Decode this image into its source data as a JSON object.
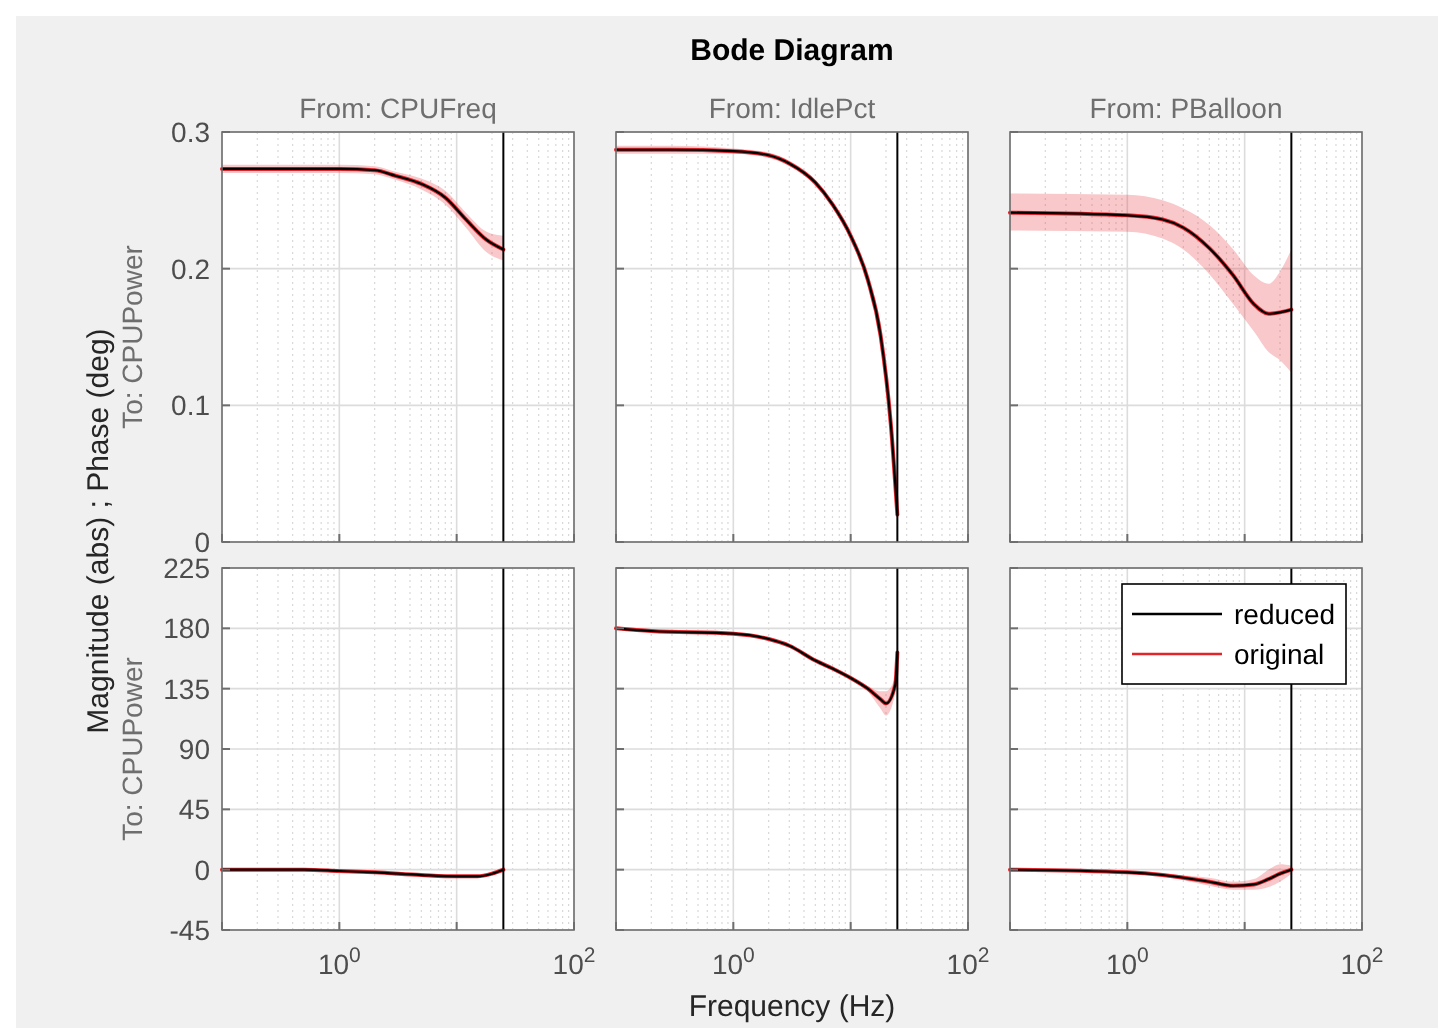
{
  "chart_data": [
    {
      "type": "line",
      "title": "From: CPUFreq",
      "ylabel": "To: CPUPower",
      "log": "x",
      "xlim": [
        0.1,
        100
      ],
      "xticks": [
        {
          "value": 0.1,
          "label": null
        },
        {
          "value": 1,
          "label": null
        },
        {
          "value": 10,
          "label": null
        },
        {
          "value": 100,
          "label": null
        }
      ],
      "ylim": [
        0,
        0.3
      ],
      "yticks": [
        0,
        0.1,
        0.2,
        0.3
      ],
      "grid": true,
      "tick_labels": "y",
      "ref_lines": [
        {
          "axis": "x",
          "value": 25,
          "color": "#000000"
        }
      ],
      "x": [
        0.1,
        0.3,
        1,
        2,
        3,
        5,
        8,
        12,
        18,
        25
      ],
      "series": [
        {
          "color": "#000000",
          "values": [
            0.273,
            0.273,
            0.273,
            0.272,
            0.268,
            0.262,
            0.252,
            0.236,
            0.221,
            0.214
          ]
        },
        {
          "color": "#e3242b",
          "values": [
            0.273,
            0.273,
            0.273,
            0.272,
            0.268,
            0.262,
            0.252,
            0.236,
            0.221,
            0.214
          ],
          "lower": [
            0.27,
            0.27,
            0.27,
            0.269,
            0.265,
            0.258,
            0.247,
            0.23,
            0.212,
            0.206
          ],
          "upper": [
            0.276,
            0.276,
            0.276,
            0.275,
            0.271,
            0.266,
            0.257,
            0.241,
            0.227,
            0.224
          ]
        }
      ]
    },
    {
      "type": "line",
      "title": "From: IdlePct",
      "log": "x",
      "xlim": [
        0.1,
        100
      ],
      "xticks": [
        {
          "value": 0.1,
          "label": null
        },
        {
          "value": 1,
          "label": null
        },
        {
          "value": 10,
          "label": null
        },
        {
          "value": 100,
          "label": null
        }
      ],
      "ylim": [
        0,
        0.3
      ],
      "yticks": [
        0,
        0.1,
        0.2,
        0.3
      ],
      "grid": true,
      "tick_labels": false,
      "ref_lines": [
        {
          "axis": "x",
          "value": 25,
          "color": "#000000"
        }
      ],
      "x": [
        0.1,
        0.3,
        1,
        2,
        3,
        5,
        7,
        10,
        14,
        18,
        22,
        25
      ],
      "series": [
        {
          "color": "#000000",
          "values": [
            0.287,
            0.287,
            0.286,
            0.283,
            0.277,
            0.263,
            0.247,
            0.224,
            0.192,
            0.151,
            0.086,
            0.02
          ]
        },
        {
          "color": "#e3242b",
          "values": [
            0.287,
            0.287,
            0.286,
            0.283,
            0.277,
            0.263,
            0.247,
            0.224,
            0.192,
            0.151,
            0.086,
            0.02
          ],
          "lower": [
            0.284,
            0.284,
            0.284,
            0.281,
            0.275,
            0.261,
            0.245,
            0.222,
            0.19,
            0.149,
            0.084,
            0.018
          ],
          "upper": [
            0.29,
            0.29,
            0.288,
            0.285,
            0.279,
            0.265,
            0.249,
            0.226,
            0.194,
            0.153,
            0.088,
            0.022
          ]
        }
      ]
    },
    {
      "type": "line",
      "title": "From: PBalloon",
      "log": "x",
      "xlim": [
        0.1,
        100
      ],
      "xticks": [
        {
          "value": 0.1,
          "label": null
        },
        {
          "value": 1,
          "label": null
        },
        {
          "value": 10,
          "label": null
        },
        {
          "value": 100,
          "label": null
        }
      ],
      "ylim": [
        0,
        0.3
      ],
      "yticks": [
        0,
        0.1,
        0.2,
        0.3
      ],
      "grid": true,
      "tick_labels": false,
      "ref_lines": [
        {
          "axis": "x",
          "value": 25,
          "color": "#000000"
        }
      ],
      "x": [
        0.1,
        1,
        2,
        3,
        5,
        8,
        12,
        16,
        20,
        25
      ],
      "series": [
        {
          "color": "#000000",
          "values": [
            0.241,
            0.239,
            0.236,
            0.23,
            0.215,
            0.195,
            0.174,
            0.167,
            0.168,
            0.17
          ]
        },
        {
          "color": "#e3242b",
          "values": [
            0.241,
            0.239,
            0.236,
            0.23,
            0.215,
            0.195,
            0.174,
            0.167,
            0.168,
            0.17
          ],
          "lower": [
            0.228,
            0.227,
            0.222,
            0.214,
            0.196,
            0.174,
            0.154,
            0.139,
            0.133,
            0.124
          ],
          "upper": [
            0.255,
            0.254,
            0.25,
            0.244,
            0.232,
            0.214,
            0.195,
            0.189,
            0.198,
            0.214
          ]
        }
      ]
    },
    {
      "type": "line",
      "ylabel": "To: CPUPower",
      "log": "x",
      "xlim": [
        0.1,
        100
      ],
      "xticks": [
        {
          "value": 0.1,
          "label": null
        },
        {
          "value": 1,
          "label": "10$^{0}$"
        },
        {
          "value": 10,
          "label": null
        },
        {
          "value": 100,
          "label": "10$^{2}$"
        }
      ],
      "ylim": [
        -45,
        225
      ],
      "yticks": [
        -45,
        0,
        45,
        90,
        135,
        180,
        225
      ],
      "grid": true,
      "ref_lines": [
        {
          "axis": "x",
          "value": 25,
          "color": "#000000"
        }
      ],
      "x": [
        0.1,
        0.5,
        1,
        2,
        5,
        10,
        15,
        20,
        25
      ],
      "series": [
        {
          "color": "#000000",
          "values": [
            0,
            0,
            -1,
            -2,
            -4,
            -5,
            -5,
            -3,
            0
          ]
        },
        {
          "color": "#e3242b",
          "values": [
            0,
            0,
            -1,
            -2,
            -4,
            -5,
            -5,
            -3,
            0
          ]
        }
      ]
    },
    {
      "type": "line",
      "log": "x",
      "xlim": [
        0.1,
        100
      ],
      "xticks": [
        {
          "value": 0.1,
          "label": null
        },
        {
          "value": 1,
          "label": "10$^{0}$"
        },
        {
          "value": 10,
          "label": null
        },
        {
          "value": 100,
          "label": "10$^{2}$"
        }
      ],
      "ylim": [
        -45,
        225
      ],
      "yticks": [
        -45,
        0,
        45,
        90,
        135,
        180,
        225
      ],
      "grid": true,
      "tick_labels": "x",
      "ref_lines": [
        {
          "axis": "x",
          "value": 25,
          "color": "#000000"
        }
      ],
      "x": [
        0.1,
        0.2,
        1,
        2,
        3,
        5,
        7,
        10,
        14,
        18,
        20,
        24,
        25
      ],
      "series": [
        {
          "color": "#000000",
          "values": [
            180,
            178,
            176,
            172,
            167,
            156,
            150,
            143,
            135,
            127,
            124,
            138,
            162
          ]
        },
        {
          "color": "#e3242b",
          "values": [
            180,
            178,
            176,
            172,
            167,
            156,
            150,
            143,
            135,
            127,
            124,
            138,
            162
          ],
          "lower": [
            179,
            177,
            175,
            171,
            166,
            155,
            149,
            142,
            133,
            120,
            115,
            132,
            160
          ],
          "upper": [
            181,
            179,
            177,
            173,
            168,
            157,
            151,
            144,
            137,
            133,
            133,
            144,
            164
          ]
        }
      ]
    },
    {
      "type": "line",
      "log": "x",
      "xlim": [
        0.1,
        100
      ],
      "xticks": [
        {
          "value": 0.1,
          "label": null
        },
        {
          "value": 1,
          "label": "10$^{0}$"
        },
        {
          "value": 10,
          "label": null
        },
        {
          "value": 100,
          "label": "10$^{2}$"
        }
      ],
      "ylim": [
        -45,
        225
      ],
      "yticks": [
        -45,
        0,
        45,
        90,
        135,
        180,
        225
      ],
      "grid": true,
      "tick_labels": "x",
      "legend": "top right",
      "ref_lines": [
        {
          "axis": "x",
          "value": 25,
          "color": "#000000"
        }
      ],
      "x": [
        0.1,
        1,
        2,
        5,
        8,
        12,
        16,
        20,
        25
      ],
      "series": [
        {
          "name": "reduced",
          "color": "#000000",
          "values": [
            0,
            -2,
            -4,
            -9,
            -12,
            -11,
            -7,
            -3,
            0
          ]
        },
        {
          "name": "original",
          "color": "#e3242b",
          "values": [
            0,
            -2,
            -4,
            -9,
            -12,
            -11,
            -7,
            -3,
            0
          ],
          "lower": [
            -1,
            -3,
            -5,
            -12,
            -15,
            -15,
            -13,
            -9,
            -3
          ],
          "upper": [
            1,
            -1,
            -3,
            -6,
            -9,
            -7,
            0,
            4,
            3
          ]
        }
      ]
    },
    {
      "type": "other",
      "title": "Bode Diagram",
      "xlabel": "Frequency  (Hz)",
      "ylabel": "Magnitude (abs) ; Phase (deg)"
    }
  ]
}
